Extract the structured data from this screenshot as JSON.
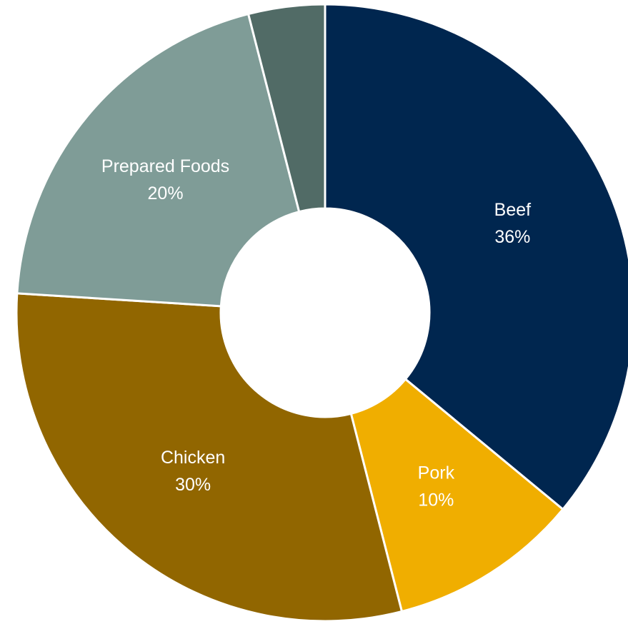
{
  "chart_data": {
    "type": "donut",
    "categories": [
      "Beef",
      "Pork",
      "Chicken",
      "Prepared Foods",
      null
    ],
    "values": [
      36,
      10,
      30,
      20,
      4
    ],
    "value_labels": [
      "36%",
      "10%",
      "30%",
      "20%",
      null
    ],
    "colors": [
      "#00264f",
      "#f0ae00",
      "#916600",
      "#7f9c97",
      "#516b66"
    ]
  }
}
